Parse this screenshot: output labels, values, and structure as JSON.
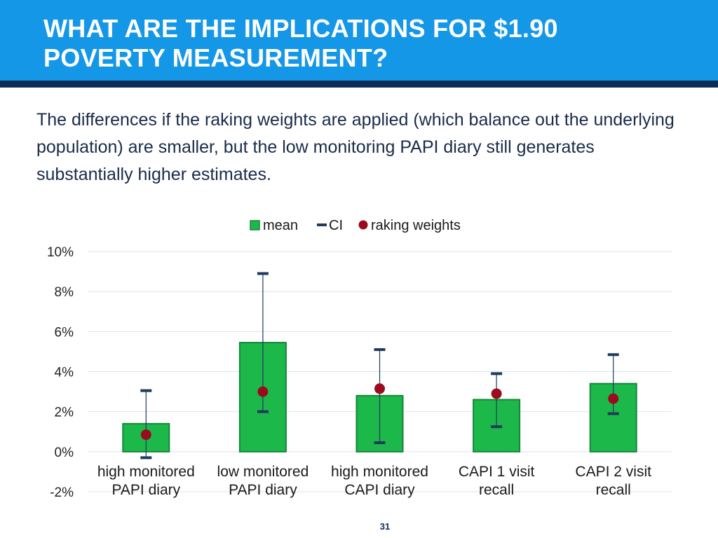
{
  "slide": {
    "title_line1": "WHAT ARE THE IMPLICATIONS FOR $1.90",
    "title_line2": "POVERTY MEASUREMENT?",
    "body": "The differences if the raking weights are applied (which balance out the underlying population) are smaller, but the low monitoring PAPI diary still generates substantially higher estimates.",
    "page_number": "31"
  },
  "colors": {
    "header": "#1597e8",
    "header_rule": "#0d2d57",
    "bar_fill": "#1db84a",
    "bar_stroke": "#14863a",
    "ci": "#1f3b5c",
    "raking_dot": "#9b0b1e",
    "grid": "#d9e4ef"
  },
  "chart_data": {
    "type": "bar",
    "title": "",
    "xlabel": "",
    "ylabel": "",
    "ylim": [
      -2,
      10
    ],
    "yticks": [
      -2,
      0,
      2,
      4,
      6,
      8,
      10
    ],
    "ytick_labels": [
      "-2%",
      "0%",
      "2%",
      "4%",
      "6%",
      "8%",
      "10%"
    ],
    "legend": {
      "position": "top-center",
      "items": [
        "mean",
        "CI",
        "raking weights"
      ]
    },
    "categories": [
      [
        "high monitored",
        "PAPI diary"
      ],
      [
        "low monitored",
        "PAPI diary"
      ],
      [
        "high monitored",
        "CAPI diary"
      ],
      [
        "CAPI 1 visit",
        "recall"
      ],
      [
        "CAPI 2 visit",
        "recall"
      ]
    ],
    "series": [
      {
        "name": "mean",
        "values": [
          1.4,
          5.45,
          2.8,
          2.6,
          3.4
        ]
      },
      {
        "name": "CI lower",
        "values": [
          -0.3,
          2.0,
          0.45,
          1.25,
          1.9
        ]
      },
      {
        "name": "CI upper",
        "values": [
          3.05,
          8.9,
          5.1,
          3.9,
          4.85
        ]
      },
      {
        "name": "raking weights",
        "values": [
          0.85,
          3.0,
          3.15,
          2.9,
          2.65
        ]
      }
    ]
  }
}
